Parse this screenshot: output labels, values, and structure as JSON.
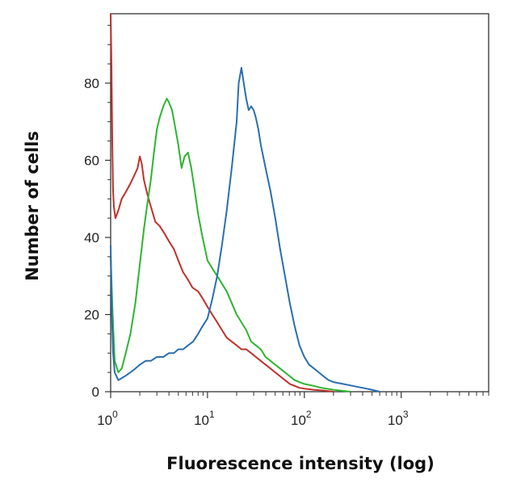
{
  "chart_data": {
    "type": "line",
    "title": "",
    "xlabel": "Fluorescence intensity (log)",
    "ylabel": "Number of cells",
    "xscale": "log",
    "xlim": [
      1,
      8000
    ],
    "ylim": [
      0,
      98
    ],
    "xticks": [
      {
        "base": "10",
        "exp": "0",
        "value": 1
      },
      {
        "base": "10",
        "exp": "1",
        "value": 10
      },
      {
        "base": "10",
        "exp": "2",
        "value": 100
      },
      {
        "base": "10",
        "exp": "3",
        "value": 1000
      }
    ],
    "yticks": [
      0,
      20,
      40,
      60,
      80
    ],
    "legend": "none",
    "series": [
      {
        "name": "red",
        "color": "#c0302b",
        "points": [
          [
            1.0,
            98
          ],
          [
            1.02,
            85
          ],
          [
            1.04,
            65
          ],
          [
            1.06,
            52
          ],
          [
            1.08,
            48
          ],
          [
            1.12,
            45
          ],
          [
            1.2,
            47
          ],
          [
            1.3,
            50
          ],
          [
            1.45,
            52
          ],
          [
            1.6,
            54
          ],
          [
            1.75,
            56
          ],
          [
            1.9,
            58
          ],
          [
            2.0,
            61
          ],
          [
            2.1,
            59
          ],
          [
            2.2,
            55
          ],
          [
            2.4,
            51
          ],
          [
            2.6,
            48
          ],
          [
            2.9,
            44
          ],
          [
            3.2,
            43
          ],
          [
            3.6,
            41
          ],
          [
            4.0,
            39
          ],
          [
            4.5,
            37
          ],
          [
            5.0,
            34
          ],
          [
            5.6,
            31
          ],
          [
            6.3,
            29
          ],
          [
            7.0,
            27
          ],
          [
            8.0,
            26
          ],
          [
            9.0,
            24
          ],
          [
            10.0,
            22
          ],
          [
            11.2,
            20
          ],
          [
            12.6,
            18
          ],
          [
            14.1,
            16
          ],
          [
            15.8,
            14
          ],
          [
            17.8,
            13
          ],
          [
            20.0,
            12
          ],
          [
            22.4,
            11
          ],
          [
            25.1,
            11
          ],
          [
            28.2,
            10
          ],
          [
            31.6,
            9
          ],
          [
            35.5,
            8
          ],
          [
            39.8,
            7
          ],
          [
            44.7,
            6
          ],
          [
            50.1,
            5
          ],
          [
            56.2,
            4
          ],
          [
            63.1,
            3
          ],
          [
            70.8,
            2
          ],
          [
            79.4,
            1.5
          ],
          [
            89.1,
            1
          ],
          [
            100,
            0.8
          ],
          [
            125,
            0.5
          ],
          [
            160,
            0.3
          ],
          [
            200,
            0
          ]
        ]
      },
      {
        "name": "green",
        "color": "#2db52d",
        "points": [
          [
            1.0,
            35
          ],
          [
            1.05,
            20
          ],
          [
            1.1,
            8
          ],
          [
            1.2,
            5
          ],
          [
            1.3,
            6
          ],
          [
            1.4,
            9
          ],
          [
            1.6,
            15
          ],
          [
            1.8,
            23
          ],
          [
            2.0,
            33
          ],
          [
            2.2,
            42
          ],
          [
            2.4,
            49
          ],
          [
            2.6,
            55
          ],
          [
            2.8,
            62
          ],
          [
            3.0,
            68
          ],
          [
            3.2,
            71
          ],
          [
            3.5,
            74
          ],
          [
            3.8,
            76
          ],
          [
            4.0,
            75
          ],
          [
            4.3,
            73
          ],
          [
            4.6,
            69
          ],
          [
            5.0,
            64
          ],
          [
            5.4,
            58
          ],
          [
            5.8,
            61
          ],
          [
            6.3,
            62
          ],
          [
            6.8,
            58
          ],
          [
            7.4,
            52
          ],
          [
            8.0,
            46
          ],
          [
            8.9,
            40
          ],
          [
            10.0,
            34
          ],
          [
            11.2,
            32
          ],
          [
            12.6,
            30
          ],
          [
            14.1,
            28
          ],
          [
            15.8,
            26
          ],
          [
            17.8,
            23
          ],
          [
            20.0,
            20
          ],
          [
            22.4,
            18
          ],
          [
            25.1,
            16
          ],
          [
            28.2,
            13
          ],
          [
            31.6,
            12
          ],
          [
            35.5,
            11
          ],
          [
            39.8,
            9
          ],
          [
            44.7,
            8
          ],
          [
            50.1,
            7
          ],
          [
            56.2,
            6
          ],
          [
            63.1,
            5
          ],
          [
            70.8,
            4
          ],
          [
            79.4,
            3
          ],
          [
            89.1,
            2.5
          ],
          [
            100,
            2
          ],
          [
            125,
            1.5
          ],
          [
            150,
            1
          ],
          [
            200,
            0.5
          ],
          [
            300,
            0
          ]
        ]
      },
      {
        "name": "blue",
        "color": "#2a6eb0",
        "points": [
          [
            1.0,
            38
          ],
          [
            1.03,
            20
          ],
          [
            1.06,
            10
          ],
          [
            1.1,
            5
          ],
          [
            1.2,
            3
          ],
          [
            1.4,
            4
          ],
          [
            1.6,
            5
          ],
          [
            1.8,
            6
          ],
          [
            2.0,
            7
          ],
          [
            2.3,
            8
          ],
          [
            2.6,
            8
          ],
          [
            3.0,
            9
          ],
          [
            3.5,
            9
          ],
          [
            4.0,
            10
          ],
          [
            4.5,
            10
          ],
          [
            5.0,
            11
          ],
          [
            5.6,
            11
          ],
          [
            6.3,
            12
          ],
          [
            7.1,
            13
          ],
          [
            8.0,
            15
          ],
          [
            8.9,
            17
          ],
          [
            10.0,
            19
          ],
          [
            11.2,
            24
          ],
          [
            12.6,
            30
          ],
          [
            14.1,
            38
          ],
          [
            15.8,
            47
          ],
          [
            17.8,
            58
          ],
          [
            20.0,
            70
          ],
          [
            21.0,
            80
          ],
          [
            22.4,
            84
          ],
          [
            23.7,
            80
          ],
          [
            25.1,
            76
          ],
          [
            26.6,
            73
          ],
          [
            28.2,
            74
          ],
          [
            30.0,
            73
          ],
          [
            31.6,
            71
          ],
          [
            33.5,
            68
          ],
          [
            35.5,
            64
          ],
          [
            39.8,
            58
          ],
          [
            44.7,
            52
          ],
          [
            50.1,
            45
          ],
          [
            56.2,
            37
          ],
          [
            63.1,
            30
          ],
          [
            70.8,
            23
          ],
          [
            79.4,
            17
          ],
          [
            89.1,
            12
          ],
          [
            100,
            9
          ],
          [
            112,
            7
          ],
          [
            126,
            6
          ],
          [
            141,
            5
          ],
          [
            158,
            4
          ],
          [
            178,
            3
          ],
          [
            200,
            2.5
          ],
          [
            251,
            2
          ],
          [
            316,
            1.5
          ],
          [
            398,
            1
          ],
          [
            500,
            0.5
          ],
          [
            600,
            0
          ]
        ]
      }
    ]
  }
}
